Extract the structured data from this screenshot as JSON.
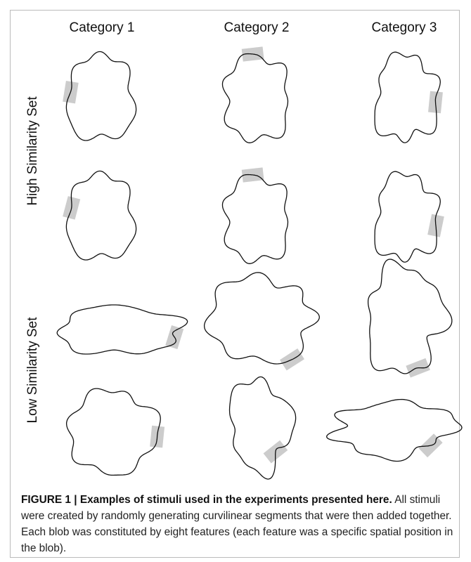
{
  "figure": {
    "columns": [
      "Category 1",
      "Category 2",
      "Category 3"
    ],
    "rows": [
      "High Similarity Set",
      "Low Similarity Set"
    ],
    "caption": {
      "title": "FIGURE 1 | Examples of stimuli used in the experiments presented here.",
      "text": "All stimuli were created by randomly generating curvilinear segments that were then added together. Each blob was constituted by eight features (each feature was a specific spatial position in the blob)."
    }
  }
}
